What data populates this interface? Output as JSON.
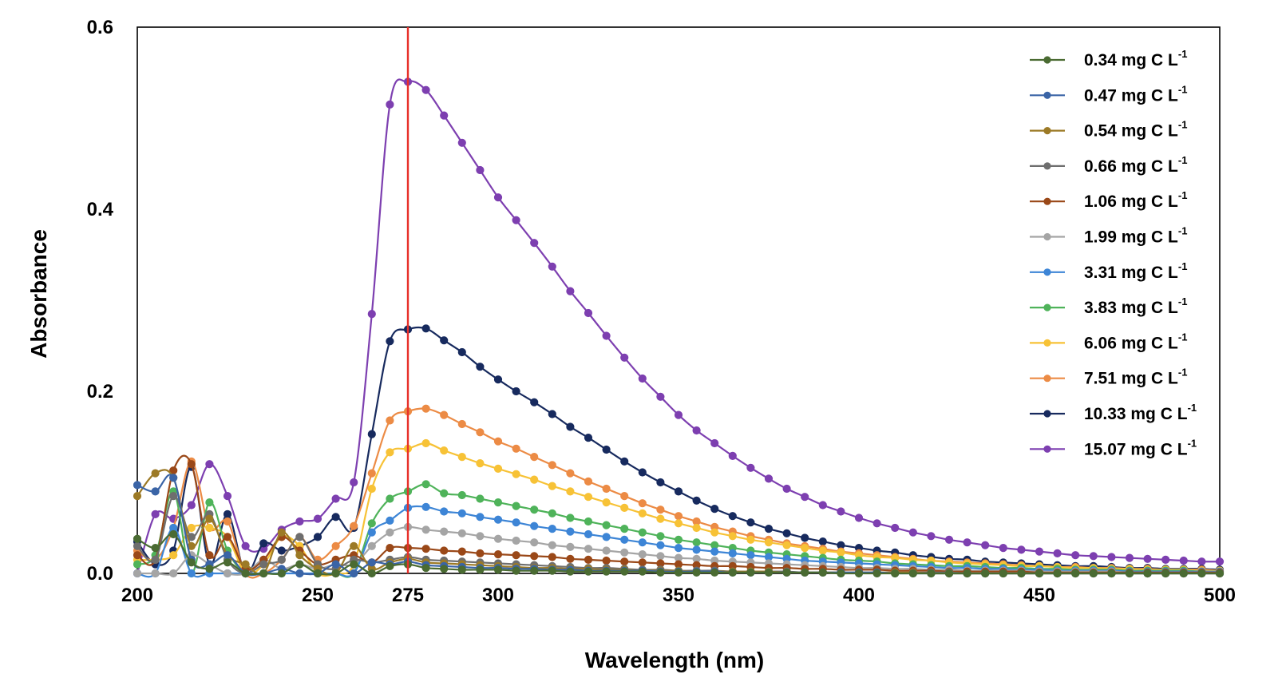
{
  "chart_data": {
    "type": "line",
    "title": "",
    "xlabel": "Wavelength (nm)",
    "ylabel": "Absorbance",
    "xlim": [
      200,
      500
    ],
    "ylim": [
      0,
      0.6
    ],
    "xticks": [
      "200",
      "250",
      "275",
      "300",
      "350",
      "400",
      "450",
      "500"
    ],
    "yticks": [
      "0.0",
      "0.2",
      "0.4",
      "0.6"
    ],
    "reference_line": {
      "x": 275,
      "label": "275",
      "color": "#e8302a"
    },
    "grid": false,
    "legend_position": "top-right",
    "legend_unit": "mg C L",
    "legend_superscript": "-1",
    "x": [
      200,
      205,
      210,
      215,
      220,
      225,
      230,
      235,
      240,
      245,
      250,
      255,
      260,
      265,
      270,
      275,
      280,
      285,
      290,
      295,
      300,
      305,
      310,
      315,
      320,
      325,
      330,
      335,
      340,
      345,
      350,
      355,
      360,
      365,
      370,
      375,
      380,
      385,
      390,
      395,
      400,
      405,
      410,
      415,
      420,
      425,
      430,
      435,
      440,
      445,
      450,
      455,
      460,
      465,
      470,
      475,
      480,
      485,
      490,
      495,
      500
    ],
    "series": [
      {
        "name": "0.34",
        "color": "#4a6b32",
        "values": [
          0.038,
          0.028,
          0.043,
          0.012,
          0.005,
          0.012,
          0.0,
          0.0,
          0.0,
          0.01,
          0.0,
          0.0,
          0.01,
          0.0,
          0.008,
          0.01,
          0.006,
          0.005,
          0.004,
          0.004,
          0.004,
          0.003,
          0.003,
          0.003,
          0.002,
          0.002,
          0.002,
          0.002,
          0.002,
          0.001,
          0.001,
          0.001,
          0.001,
          0.001,
          0.001,
          0.001,
          0.001,
          0.001,
          0.001,
          0.0,
          0.0,
          0.0,
          0.0,
          0.0,
          0.0,
          0.0,
          0.0,
          0.0,
          0.0,
          0.0,
          0.0,
          0.0,
          0.0,
          0.0,
          0.0,
          0.0,
          0.0,
          0.0,
          0.0,
          0.0,
          0.0
        ]
      },
      {
        "name": "0.47",
        "color": "#3a64a6",
        "values": [
          0.097,
          0.09,
          0.105,
          0.015,
          0.01,
          0.02,
          0.0,
          0.0,
          0.005,
          0.0,
          0.0,
          0.01,
          0.0,
          0.012,
          0.01,
          0.013,
          0.009,
          0.008,
          0.007,
          0.006,
          0.006,
          0.005,
          0.005,
          0.004,
          0.004,
          0.003,
          0.003,
          0.003,
          0.003,
          0.002,
          0.002,
          0.002,
          0.002,
          0.001,
          0.001,
          0.001,
          0.001,
          0.001,
          0.001,
          0.001,
          0.001,
          0.001,
          0.0,
          0.0,
          0.0,
          0.0,
          0.0,
          0.0,
          0.0,
          0.0,
          0.0,
          0.0,
          0.0,
          0.0,
          0.0,
          0.0,
          0.0,
          0.0,
          0.0,
          0.0,
          0.0
        ]
      },
      {
        "name": "0.54",
        "color": "#9c7a26",
        "values": [
          0.085,
          0.11,
          0.105,
          0.03,
          0.06,
          0.02,
          0.01,
          0.0,
          0.045,
          0.02,
          0.005,
          0.0,
          0.03,
          0.005,
          0.012,
          0.016,
          0.012,
          0.011,
          0.01,
          0.009,
          0.008,
          0.007,
          0.006,
          0.006,
          0.005,
          0.005,
          0.004,
          0.004,
          0.003,
          0.003,
          0.003,
          0.002,
          0.002,
          0.002,
          0.002,
          0.002,
          0.001,
          0.001,
          0.001,
          0.001,
          0.001,
          0.001,
          0.001,
          0.001,
          0.0,
          0.0,
          0.0,
          0.0,
          0.0,
          0.0,
          0.0,
          0.0,
          0.0,
          0.0,
          0.0,
          0.0,
          0.0,
          0.0,
          0.0,
          0.0,
          0.0
        ]
      },
      {
        "name": "0.66",
        "color": "#6e6e6e",
        "values": [
          0.03,
          0.015,
          0.085,
          0.04,
          0.065,
          0.015,
          0.0,
          0.01,
          0.015,
          0.04,
          0.01,
          0.005,
          0.015,
          0.012,
          0.015,
          0.018,
          0.015,
          0.014,
          0.013,
          0.012,
          0.011,
          0.01,
          0.009,
          0.008,
          0.007,
          0.006,
          0.006,
          0.005,
          0.004,
          0.004,
          0.003,
          0.003,
          0.003,
          0.002,
          0.002,
          0.002,
          0.002,
          0.001,
          0.001,
          0.001,
          0.001,
          0.001,
          0.001,
          0.001,
          0.001,
          0.001,
          0.0,
          0.0,
          0.0,
          0.0,
          0.0,
          0.0,
          0.0,
          0.0,
          0.0,
          0.0,
          0.0,
          0.0,
          0.0,
          0.0,
          0.0
        ]
      },
      {
        "name": "1.06",
        "color": "#9a4818",
        "values": [
          0.02,
          0.015,
          0.113,
          0.12,
          0.02,
          0.04,
          0.005,
          0.015,
          0.04,
          0.025,
          0.01,
          0.015,
          0.02,
          0.012,
          0.028,
          0.028,
          0.027,
          0.025,
          0.024,
          0.022,
          0.021,
          0.02,
          0.019,
          0.018,
          0.016,
          0.015,
          0.014,
          0.013,
          0.012,
          0.011,
          0.01,
          0.009,
          0.008,
          0.008,
          0.007,
          0.006,
          0.006,
          0.005,
          0.005,
          0.004,
          0.004,
          0.004,
          0.003,
          0.003,
          0.003,
          0.002,
          0.002,
          0.002,
          0.002,
          0.002,
          0.001,
          0.001,
          0.001,
          0.001,
          0.001,
          0.001,
          0.001,
          0.001,
          0.001,
          0.001,
          0.001
        ]
      },
      {
        "name": "1.99",
        "color": "#a5a5a5",
        "values": [
          0.0,
          0.0,
          0.0,
          0.02,
          0.01,
          0.0,
          0.0,
          0.015,
          0.005,
          0.01,
          0.005,
          0.01,
          0.01,
          0.03,
          0.045,
          0.051,
          0.048,
          0.046,
          0.044,
          0.041,
          0.038,
          0.036,
          0.034,
          0.031,
          0.029,
          0.027,
          0.025,
          0.023,
          0.021,
          0.019,
          0.017,
          0.016,
          0.014,
          0.013,
          0.012,
          0.011,
          0.01,
          0.009,
          0.008,
          0.007,
          0.006,
          0.006,
          0.005,
          0.005,
          0.004,
          0.004,
          0.003,
          0.003,
          0.003,
          0.003,
          0.002,
          0.002,
          0.002,
          0.002,
          0.002,
          0.001,
          0.001,
          0.001,
          0.001,
          0.001,
          0.001
        ]
      },
      {
        "name": "3.31",
        "color": "#3d85d6",
        "values": [
          0.0,
          0.0,
          0.05,
          0.0,
          0.0,
          0.0,
          0.0,
          0.0,
          0.0,
          0.0,
          0.0,
          0.0,
          0.0,
          0.045,
          0.058,
          0.072,
          0.073,
          0.068,
          0.066,
          0.062,
          0.059,
          0.056,
          0.052,
          0.049,
          0.046,
          0.043,
          0.04,
          0.037,
          0.034,
          0.031,
          0.028,
          0.026,
          0.024,
          0.022,
          0.02,
          0.018,
          0.016,
          0.014,
          0.013,
          0.012,
          0.011,
          0.01,
          0.009,
          0.008,
          0.007,
          0.006,
          0.006,
          0.005,
          0.005,
          0.004,
          0.004,
          0.003,
          0.003,
          0.003,
          0.003,
          0.002,
          0.002,
          0.002,
          0.002,
          0.002,
          0.002
        ]
      },
      {
        "name": "3.83",
        "color": "#4fb35a",
        "values": [
          0.01,
          0.02,
          0.09,
          0.0,
          0.078,
          0.025,
          0.0,
          0.0,
          0.0,
          0.01,
          0.0,
          0.0,
          0.0,
          0.055,
          0.082,
          0.09,
          0.098,
          0.088,
          0.086,
          0.082,
          0.078,
          0.074,
          0.07,
          0.066,
          0.061,
          0.057,
          0.053,
          0.049,
          0.045,
          0.041,
          0.037,
          0.034,
          0.031,
          0.028,
          0.025,
          0.023,
          0.021,
          0.019,
          0.017,
          0.015,
          0.014,
          0.013,
          0.011,
          0.01,
          0.009,
          0.008,
          0.008,
          0.007,
          0.006,
          0.006,
          0.005,
          0.005,
          0.004,
          0.004,
          0.004,
          0.003,
          0.003,
          0.003,
          0.003,
          0.002,
          0.002
        ]
      },
      {
        "name": "6.06",
        "color": "#f7c236",
        "values": [
          0.015,
          0.015,
          0.02,
          0.05,
          0.05,
          0.04,
          0.0,
          0.01,
          0.04,
          0.03,
          0.0,
          0.0,
          0.01,
          0.093,
          0.133,
          0.137,
          0.143,
          0.135,
          0.128,
          0.121,
          0.115,
          0.109,
          0.103,
          0.096,
          0.09,
          0.084,
          0.078,
          0.072,
          0.066,
          0.06,
          0.055,
          0.05,
          0.045,
          0.041,
          0.037,
          0.034,
          0.031,
          0.028,
          0.025,
          0.023,
          0.02,
          0.018,
          0.017,
          0.015,
          0.014,
          0.012,
          0.011,
          0.01,
          0.009,
          0.008,
          0.008,
          0.007,
          0.006,
          0.006,
          0.005,
          0.005,
          0.004,
          0.004,
          0.004,
          0.003,
          0.003
        ]
      },
      {
        "name": "7.51",
        "color": "#ec8b45",
        "values": [
          0.025,
          0.015,
          0.05,
          0.123,
          0.05,
          0.057,
          0.0,
          0.0,
          0.015,
          0.04,
          0.015,
          0.03,
          0.052,
          0.11,
          0.168,
          0.178,
          0.181,
          0.174,
          0.164,
          0.155,
          0.145,
          0.137,
          0.128,
          0.119,
          0.11,
          0.101,
          0.093,
          0.085,
          0.077,
          0.07,
          0.063,
          0.057,
          0.051,
          0.046,
          0.041,
          0.037,
          0.033,
          0.03,
          0.027,
          0.024,
          0.022,
          0.02,
          0.018,
          0.016,
          0.014,
          0.013,
          0.012,
          0.011,
          0.01,
          0.009,
          0.008,
          0.007,
          0.007,
          0.006,
          0.006,
          0.005,
          0.005,
          0.004,
          0.004,
          0.004,
          0.003
        ]
      },
      {
        "name": "10.33",
        "color": "#172a5e",
        "values": [
          0.035,
          0.01,
          0.025,
          0.117,
          0.01,
          0.065,
          0.0,
          0.033,
          0.025,
          0.03,
          0.04,
          0.062,
          0.05,
          0.153,
          0.255,
          0.268,
          0.269,
          0.256,
          0.243,
          0.227,
          0.213,
          0.2,
          0.188,
          0.175,
          0.161,
          0.149,
          0.136,
          0.123,
          0.111,
          0.1,
          0.09,
          0.08,
          0.071,
          0.063,
          0.056,
          0.049,
          0.044,
          0.039,
          0.035,
          0.031,
          0.028,
          0.025,
          0.023,
          0.02,
          0.018,
          0.016,
          0.015,
          0.013,
          0.012,
          0.011,
          0.01,
          0.009,
          0.008,
          0.008,
          0.007,
          0.006,
          0.006,
          0.005,
          0.005,
          0.005,
          0.004
        ]
      },
      {
        "name": "15.07",
        "color": "#7d3fb0",
        "values": [
          0.0,
          0.065,
          0.06,
          0.075,
          0.12,
          0.085,
          0.03,
          0.027,
          0.048,
          0.057,
          0.06,
          0.082,
          0.1,
          0.285,
          0.515,
          0.54,
          0.531,
          0.503,
          0.473,
          0.443,
          0.413,
          0.388,
          0.363,
          0.337,
          0.31,
          0.286,
          0.261,
          0.237,
          0.214,
          0.194,
          0.174,
          0.157,
          0.143,
          0.129,
          0.116,
          0.104,
          0.093,
          0.084,
          0.075,
          0.068,
          0.061,
          0.055,
          0.05,
          0.045,
          0.041,
          0.037,
          0.034,
          0.031,
          0.028,
          0.026,
          0.024,
          0.022,
          0.02,
          0.019,
          0.018,
          0.017,
          0.016,
          0.015,
          0.014,
          0.013,
          0.013
        ]
      }
    ]
  }
}
